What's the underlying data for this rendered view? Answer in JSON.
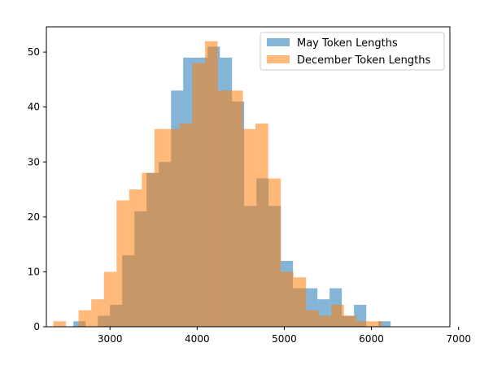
{
  "chart_data": {
    "type": "histogram",
    "xlim": [
      2270,
      6900
    ],
    "ylim": [
      0,
      54.6
    ],
    "x_ticks": [
      3000,
      4000,
      5000,
      6000,
      7000
    ],
    "y_ticks": [
      0,
      10,
      20,
      30,
      40,
      50
    ],
    "legend_position": "upper right",
    "grid": false,
    "series": [
      {
        "name": "May Token Lengths",
        "color": "#1f77b4",
        "alpha": 0.55,
        "bin_start": 2580,
        "bin_width": 140,
        "counts": [
          1,
          0,
          2,
          4,
          13,
          21,
          28,
          30,
          43,
          49,
          49,
          51,
          49,
          41,
          22,
          27,
          22,
          12,
          7,
          7,
          5,
          7,
          2,
          4,
          0,
          1
        ]
      },
      {
        "name": "December Token Lengths",
        "color": "#ff7f0e",
        "alpha": 0.55,
        "bin_start": 2350,
        "bin_width": 145,
        "counts": [
          1,
          0,
          3,
          5,
          10,
          23,
          25,
          28,
          36,
          36,
          37,
          48,
          52,
          43,
          43,
          36,
          37,
          27,
          10,
          9,
          3,
          2,
          4,
          2,
          1,
          1
        ]
      }
    ]
  }
}
